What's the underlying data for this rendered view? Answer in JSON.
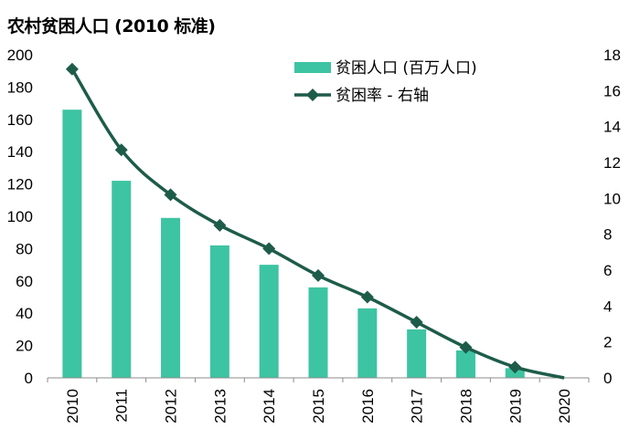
{
  "chart_data": {
    "type": "bar+line",
    "title": "农村贫困人口 (2010 标准)",
    "categories": [
      "2010",
      "2011",
      "2012",
      "2013",
      "2014",
      "2015",
      "2016",
      "2017",
      "2018",
      "2019",
      "2020"
    ],
    "series": [
      {
        "name": "贫困人口 (百万人口)",
        "kind": "bar",
        "axis": "left",
        "values": [
          166,
          122,
          99,
          82,
          70,
          56,
          43,
          30,
          17,
          6,
          0
        ]
      },
      {
        "name": "贫困率 - 右轴",
        "kind": "line",
        "axis": "right",
        "values": [
          17.2,
          12.7,
          10.2,
          8.5,
          7.2,
          5.7,
          4.5,
          3.1,
          1.7,
          0.6,
          0
        ]
      }
    ],
    "y_left": {
      "min": 0,
      "max": 200,
      "ticks": [
        "0",
        "20",
        "40",
        "60",
        "80",
        "100",
        "120",
        "140",
        "160",
        "180",
        "200"
      ]
    },
    "y_right": {
      "min": 0,
      "max": 18,
      "ticks": [
        "0",
        "2",
        "4",
        "6",
        "8",
        "10",
        "12",
        "14",
        "16",
        "18"
      ]
    },
    "legend_position": "top-right",
    "colors": {
      "bar": "#3dc4a2",
      "line": "#1e5c4a"
    }
  }
}
